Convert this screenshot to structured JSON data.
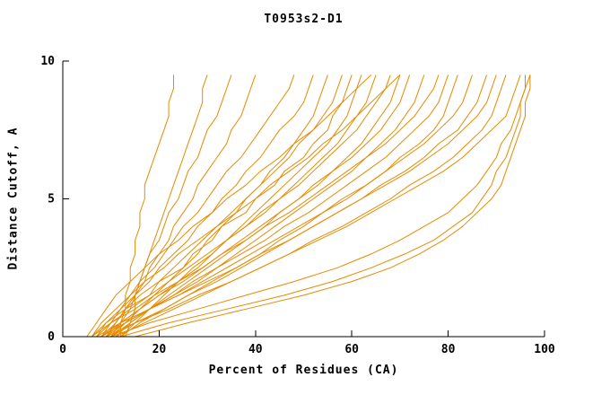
{
  "chart_data": {
    "type": "line",
    "title": "T0953s2-D1",
    "xlabel": "Percent of Residues (CA)",
    "ylabel": "Distance Cutoff, A",
    "xlim": [
      0,
      100
    ],
    "ylim": [
      0,
      10
    ],
    "xticks": [
      0,
      20,
      40,
      60,
      80,
      100
    ],
    "yticks": [
      0,
      5,
      10
    ],
    "grid": false,
    "legend": "none",
    "line_color": "#e68a00",
    "axis_color": "#000000",
    "cutoffs": [
      0,
      0.5,
      1,
      1.5,
      2,
      2.5,
      3,
      3.5,
      4,
      4.5,
      5,
      5.5,
      6,
      6.5,
      7,
      7.5,
      8,
      8.5,
      9,
      9.5
    ],
    "series": [
      [
        12,
        12,
        13,
        13,
        14,
        14,
        15,
        15,
        16,
        16,
        17,
        17,
        18,
        19,
        20,
        21,
        22,
        22,
        23,
        23
      ],
      [
        13,
        14,
        15,
        15,
        16,
        17,
        18,
        19,
        20,
        21,
        22,
        23,
        24,
        25,
        26,
        27,
        28,
        29,
        29,
        30
      ],
      [
        10,
        12,
        14,
        15,
        16,
        17,
        18,
        20,
        21,
        22,
        24,
        25,
        26,
        28,
        29,
        30,
        32,
        33,
        34,
        35
      ],
      [
        9,
        11,
        13,
        15,
        17,
        18,
        20,
        22,
        23,
        25,
        27,
        28,
        30,
        32,
        34,
        35,
        37,
        38,
        39,
        40
      ],
      [
        8,
        10,
        12,
        14,
        16,
        19,
        21,
        23,
        25,
        28,
        30,
        32,
        34,
        37,
        39,
        41,
        43,
        45,
        47,
        48
      ],
      [
        7,
        9,
        12,
        15,
        18,
        20,
        23,
        26,
        28,
        31,
        33,
        36,
        38,
        41,
        43,
        45,
        48,
        50,
        51,
        52
      ],
      [
        10,
        13,
        16,
        19,
        22,
        25,
        28,
        30,
        33,
        36,
        38,
        41,
        43,
        46,
        48,
        50,
        52,
        53,
        54,
        55
      ],
      [
        6,
        9,
        13,
        16,
        20,
        23,
        26,
        29,
        32,
        35,
        38,
        41,
        44,
        47,
        49,
        52,
        54,
        56,
        57,
        58
      ],
      [
        8,
        11,
        13,
        18,
        20,
        25,
        27,
        31,
        33,
        38,
        40,
        44,
        46,
        50,
        52,
        55,
        56,
        58,
        59,
        60
      ],
      [
        12,
        15,
        18,
        21,
        24,
        28,
        31,
        34,
        37,
        40,
        43,
        46,
        49,
        52,
        55,
        57,
        59,
        60,
        61,
        62
      ],
      [
        9,
        12,
        16,
        20,
        24,
        27,
        31,
        34,
        38,
        41,
        45,
        48,
        51,
        54,
        57,
        59,
        61,
        63,
        64,
        65
      ],
      [
        7,
        10,
        14,
        18,
        22,
        26,
        30,
        34,
        38,
        42,
        45,
        49,
        52,
        55,
        58,
        61,
        63,
        65,
        67,
        68
      ],
      [
        11,
        14,
        18,
        22,
        26,
        30,
        34,
        38,
        42,
        45,
        49,
        52,
        56,
        59,
        62,
        64,
        66,
        68,
        69,
        70
      ],
      [
        8,
        12,
        16,
        20,
        25,
        29,
        33,
        37,
        41,
        45,
        49,
        53,
        56,
        60,
        63,
        66,
        68,
        70,
        71,
        72
      ],
      [
        10,
        14,
        18,
        23,
        27,
        32,
        36,
        40,
        44,
        48,
        52,
        56,
        60,
        63,
        66,
        69,
        71,
        73,
        74,
        75
      ],
      [
        6,
        10,
        15,
        19,
        24,
        29,
        33,
        38,
        42,
        47,
        51,
        55,
        59,
        63,
        67,
        70,
        73,
        75,
        77,
        78
      ],
      [
        9,
        13,
        18,
        23,
        28,
        32,
        37,
        42,
        46,
        51,
        55,
        59,
        63,
        67,
        70,
        73,
        76,
        78,
        79,
        80
      ],
      [
        12,
        16,
        21,
        26,
        31,
        36,
        41,
        45,
        50,
        54,
        59,
        63,
        67,
        70,
        74,
        77,
        79,
        80,
        81,
        82
      ],
      [
        8,
        13,
        18,
        24,
        29,
        34,
        39,
        44,
        49,
        54,
        58,
        63,
        67,
        71,
        75,
        78,
        81,
        83,
        84,
        85
      ],
      [
        10,
        15,
        21,
        26,
        32,
        37,
        42,
        47,
        52,
        57,
        62,
        66,
        71,
        75,
        78,
        82,
        84,
        86,
        87,
        88
      ],
      [
        7,
        12,
        18,
        24,
        30,
        36,
        41,
        47,
        52,
        57,
        62,
        67,
        72,
        76,
        80,
        83,
        86,
        88,
        89,
        90
      ],
      [
        11,
        17,
        23,
        29,
        35,
        41,
        47,
        52,
        58,
        63,
        68,
        72,
        77,
        81,
        84,
        87,
        89,
        90,
        91,
        92
      ],
      [
        9,
        15,
        22,
        28,
        35,
        41,
        47,
        53,
        59,
        64,
        69,
        74,
        79,
        83,
        86,
        89,
        92,
        93,
        94,
        95
      ],
      [
        12,
        22,
        34,
        46,
        56,
        64,
        71,
        77,
        81,
        85,
        87,
        89,
        90,
        92,
        93,
        94,
        95,
        95,
        96,
        97
      ],
      [
        10,
        18,
        28,
        38,
        48,
        57,
        64,
        70,
        75,
        80,
        83,
        86,
        88,
        90,
        91,
        93,
        94,
        95,
        96,
        96
      ],
      [
        15,
        26,
        38,
        50,
        60,
        68,
        74,
        79,
        83,
        86,
        89,
        91,
        92,
        93,
        94,
        95,
        96,
        96,
        97,
        97
      ],
      [
        5,
        7,
        9,
        11,
        14,
        17,
        20,
        24,
        27,
        31,
        34,
        38,
        41,
        45,
        48,
        52,
        55,
        58,
        61,
        64
      ],
      [
        6,
        8,
        11,
        14,
        17,
        21,
        24,
        28,
        32,
        36,
        40,
        43,
        47,
        51,
        54,
        58,
        61,
        64,
        67,
        70
      ]
    ]
  }
}
